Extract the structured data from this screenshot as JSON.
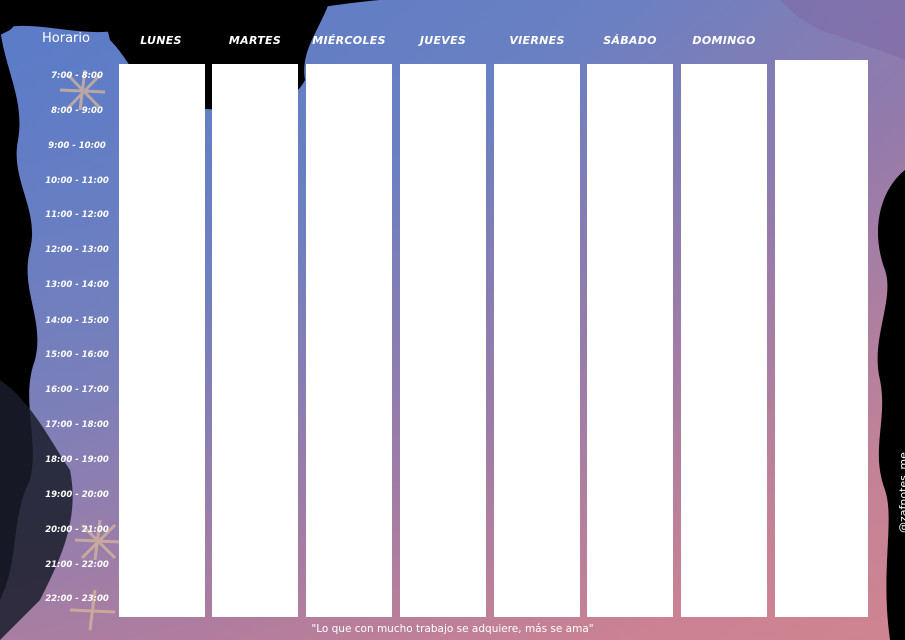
{
  "colors": {
    "blue": "#5b7bc6",
    "purple": "#8c76ae",
    "pink": "#d9868e",
    "black": "#000000",
    "white": "#ffffff",
    "flower": "#d9b69a"
  },
  "planner": {
    "title": "Horario",
    "days": [
      "LUNES",
      "MARTES",
      "MIÉRCOLES",
      "JUEVES",
      "VIERNES",
      "SÁBADO",
      "DOMINGO"
    ],
    "hours": [
      "7:00 - 8:00",
      "8:00 - 9:00",
      "9:00 - 10:00",
      "10:00 - 11:00",
      "11:00 - 12:00",
      "12:00 - 13:00",
      "13:00 - 14:00",
      "14:00 - 15:00",
      "15:00 - 16:00",
      "16:00 - 17:00",
      "17:00 - 18:00",
      "18:00 - 19:00",
      "19:00 - 20:00",
      "20:00 - 21:00",
      "21:00 - 22:00",
      "22:00 - 23:00"
    ]
  },
  "footer": {
    "quote": "\"Lo que con mucho trabajo se adquiere, más se ama\"",
    "handle": "@zafnotes_me"
  }
}
